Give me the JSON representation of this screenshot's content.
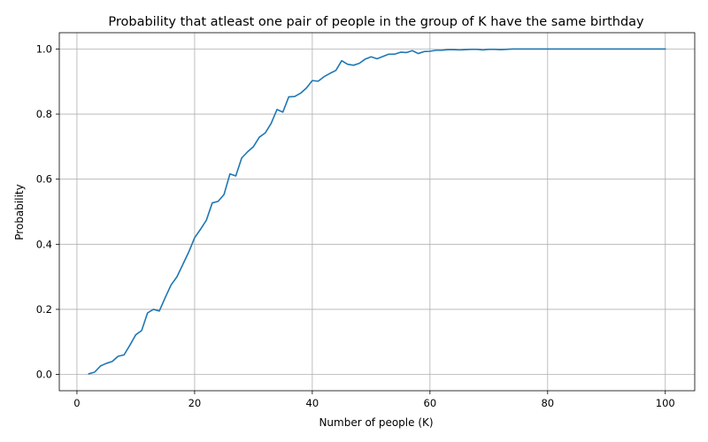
{
  "chart_data": {
    "type": "line",
    "title": "Probability that atleast one pair of people in the group of K have the same birthday",
    "xlabel": "Number of people (K)",
    "ylabel": "Probability",
    "xlim": [
      -3,
      105
    ],
    "ylim": [
      -0.05,
      1.05
    ],
    "x_ticks": [
      0,
      20,
      40,
      60,
      80,
      100
    ],
    "x_tick_labels": [
      "0",
      "20",
      "40",
      "60",
      "80",
      "100"
    ],
    "y_ticks": [
      0.0,
      0.2,
      0.4,
      0.6,
      0.8,
      1.0
    ],
    "y_tick_labels": [
      "0.0",
      "0.2",
      "0.4",
      "0.6",
      "0.8",
      "1.0"
    ],
    "grid": true,
    "legend": "none",
    "series": [
      {
        "color": "#1f77b4",
        "x": [
          2,
          3,
          4,
          5,
          6,
          7,
          8,
          9,
          10,
          11,
          12,
          13,
          14,
          15,
          16,
          17,
          18,
          19,
          20,
          21,
          22,
          23,
          24,
          25,
          26,
          27,
          28,
          29,
          30,
          31,
          32,
          33,
          34,
          35,
          36,
          37,
          38,
          39,
          40,
          41,
          42,
          43,
          44,
          45,
          46,
          47,
          48,
          49,
          50,
          51,
          52,
          53,
          54,
          55,
          56,
          57,
          58,
          59,
          60,
          61,
          62,
          63,
          64,
          65,
          66,
          67,
          68,
          69,
          70,
          71,
          72,
          73,
          74,
          75,
          76,
          77,
          78,
          79,
          80,
          81,
          82,
          83,
          84,
          85,
          86,
          87,
          88,
          89,
          90,
          91,
          92,
          93,
          94,
          95,
          96,
          97,
          98,
          99,
          100
        ],
        "y": [
          0.002,
          0.007,
          0.026,
          0.034,
          0.04,
          0.056,
          0.06,
          0.09,
          0.122,
          0.135,
          0.189,
          0.2,
          0.195,
          0.236,
          0.275,
          0.3,
          0.338,
          0.376,
          0.42,
          0.446,
          0.474,
          0.527,
          0.532,
          0.553,
          0.616,
          0.61,
          0.665,
          0.684,
          0.7,
          0.729,
          0.742,
          0.771,
          0.814,
          0.806,
          0.853,
          0.854,
          0.864,
          0.88,
          0.903,
          0.901,
          0.915,
          0.925,
          0.934,
          0.964,
          0.953,
          0.95,
          0.956,
          0.969,
          0.976,
          0.97,
          0.977,
          0.984,
          0.984,
          0.99,
          0.989,
          0.995,
          0.986,
          0.992,
          0.993,
          0.996,
          0.996,
          0.998,
          0.998,
          0.997,
          0.998,
          0.999,
          0.999,
          0.997,
          0.999,
          0.999,
          0.998,
          0.999,
          1.0,
          1.0,
          1.0,
          1.0,
          1.0,
          1.0,
          1.0,
          1.0,
          1.0,
          1.0,
          1.0,
          1.0,
          1.0,
          1.0,
          1.0,
          1.0,
          1.0,
          1.0,
          1.0,
          1.0,
          1.0,
          1.0,
          1.0,
          1.0,
          1.0,
          1.0,
          1.0
        ]
      }
    ]
  }
}
